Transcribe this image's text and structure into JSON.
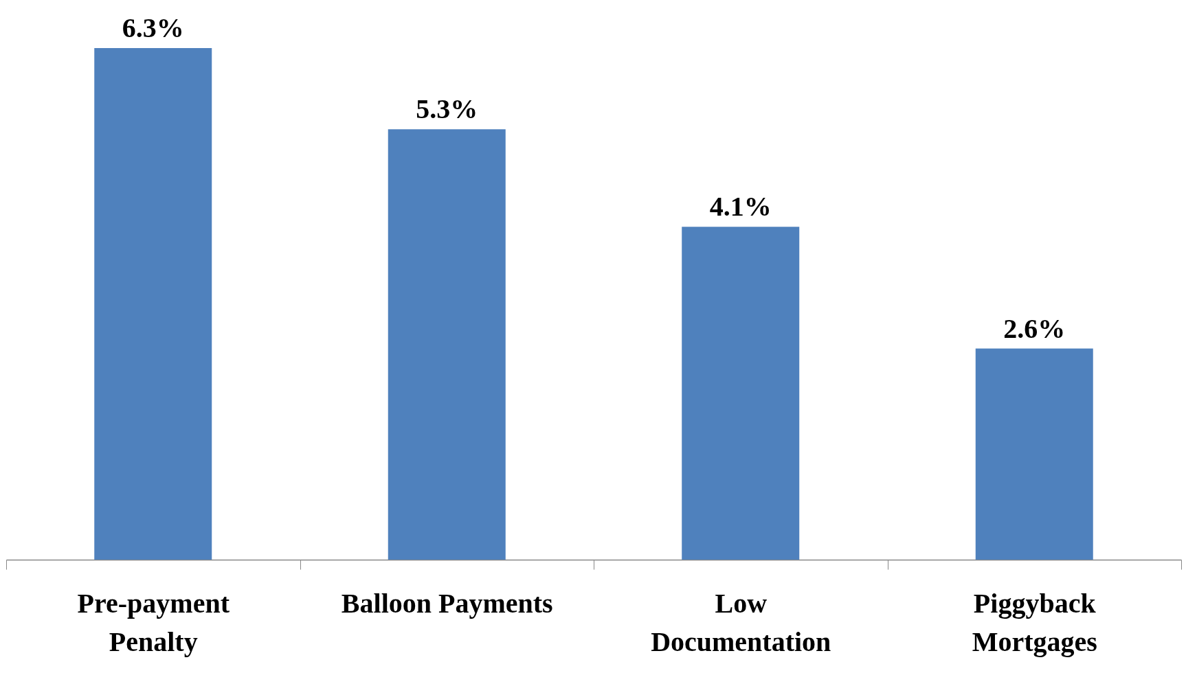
{
  "chart_data": {
    "type": "bar",
    "categories": [
      "Pre-payment Penalty",
      "Balloon Payments",
      "Low Documentation",
      "Piggyback Mortgages"
    ],
    "values": [
      6.3,
      5.3,
      4.1,
      2.6
    ],
    "value_labels": [
      "6.3%",
      "5.3%",
      "4.1%",
      "2.6%"
    ],
    "color": "#4f81bd"
  }
}
